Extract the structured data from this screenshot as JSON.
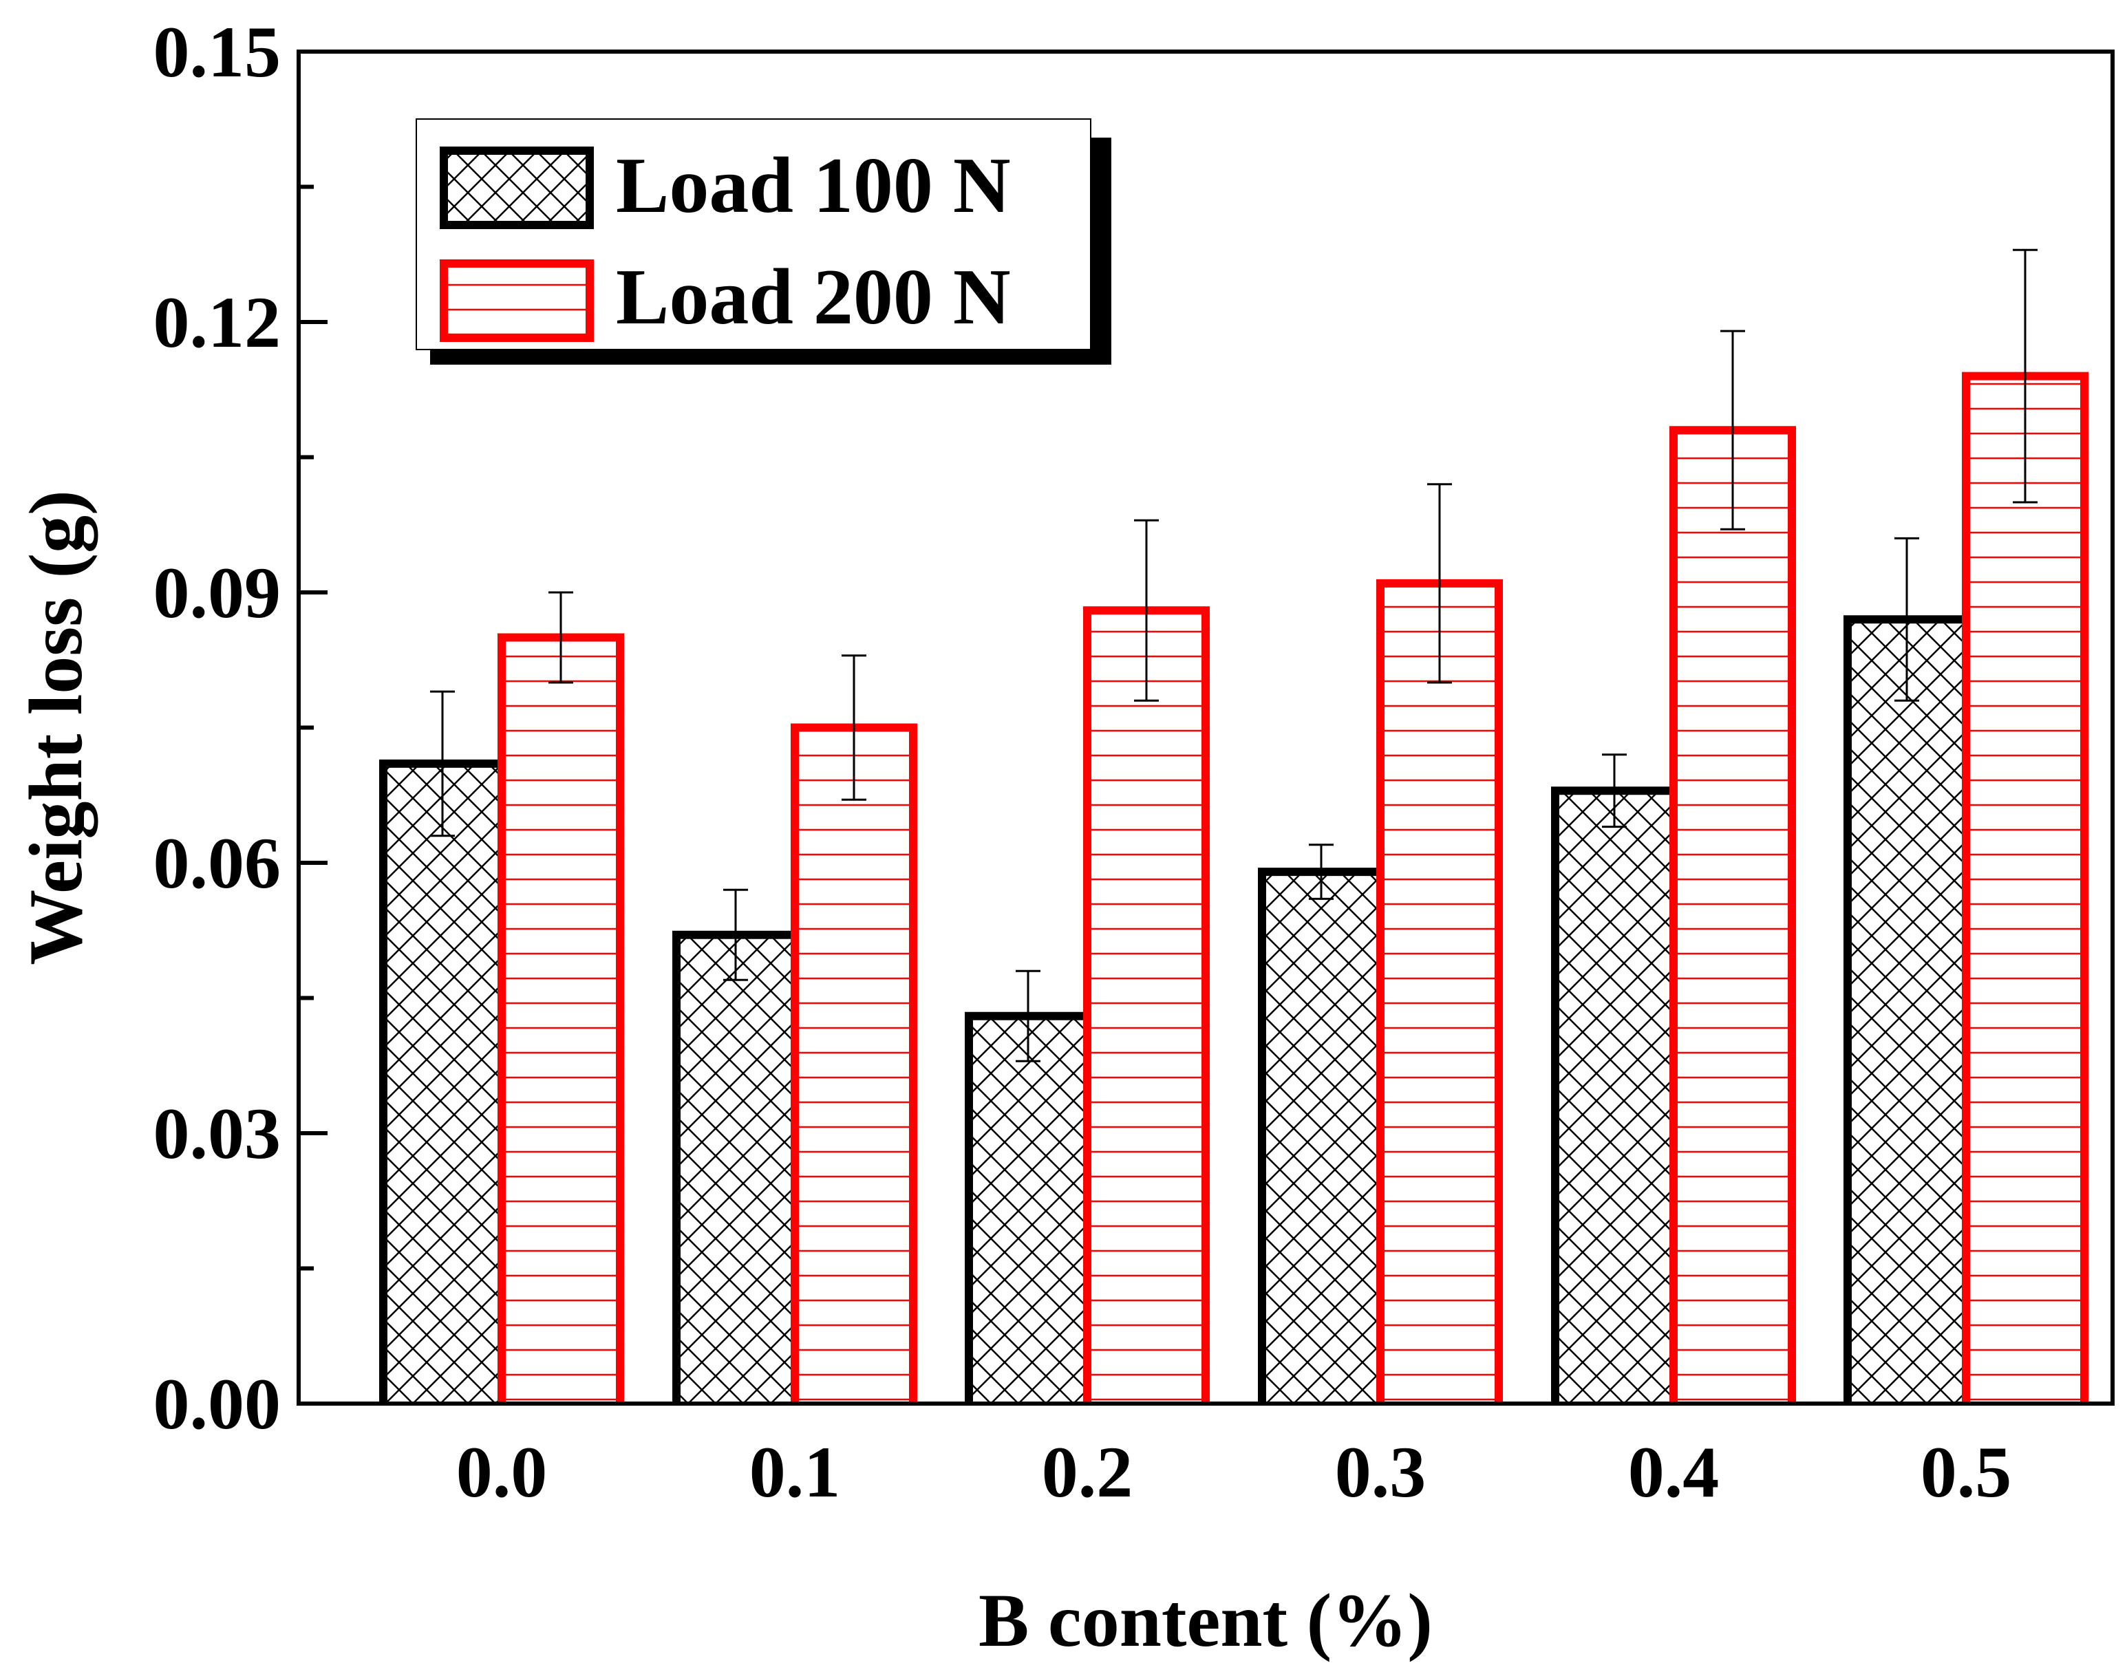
{
  "chart_data": {
    "type": "bar",
    "title": "",
    "xlabel": "B content (%)",
    "ylabel": "Weight loss (g)",
    "ylim": [
      0,
      0.15
    ],
    "yticks": [
      "0.00",
      "0.03",
      "0.06",
      "0.09",
      "0.12",
      "0.15"
    ],
    "categories": [
      "0.0",
      "0.1",
      "0.2",
      "0.3",
      "0.4",
      "0.5"
    ],
    "legend_position": "top-left",
    "grid": false,
    "series": [
      {
        "name": "Load 100 N",
        "values": [
          0.071,
          0.052,
          0.043,
          0.059,
          0.068,
          0.087
        ],
        "errors": [
          0.008,
          0.005,
          0.005,
          0.003,
          0.004,
          0.009
        ],
        "edge_color": "#000000",
        "pattern": "crosshatch"
      },
      {
        "name": "Load 200 N",
        "values": [
          0.085,
          0.075,
          0.088,
          0.091,
          0.108,
          0.114
        ],
        "errors": [
          0.005,
          0.008,
          0.01,
          0.011,
          0.011,
          0.014
        ],
        "edge_color": "#ff0000",
        "pattern": "horizontal"
      }
    ]
  }
}
